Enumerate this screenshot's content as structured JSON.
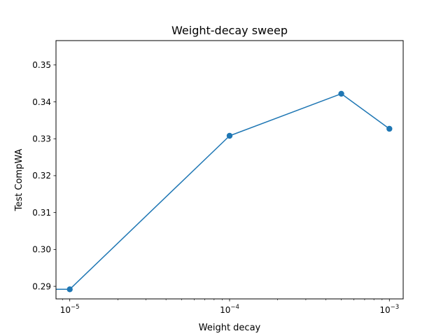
{
  "chart_data": {
    "type": "line",
    "title": "Weight-decay sweep",
    "xlabel": "Weight decay",
    "ylabel": "Test CompWA",
    "xscale": "log",
    "xlim": [
      8.2e-06,
      0.00122
    ],
    "ylim": [
      0.2866,
      0.3566
    ],
    "grid": false,
    "x": [
      1e-06,
      1e-05,
      0.0001,
      0.0005,
      0.001
    ],
    "series": [
      {
        "values": [
          0.2892,
          0.2892,
          0.3308,
          0.3422,
          0.3327
        ],
        "color": "#1f77b4",
        "marker": "circle",
        "marker_on": [
          false,
          true,
          true,
          true,
          true
        ]
      }
    ],
    "x_ticks": [
      {
        "value": 1e-05,
        "base": "10",
        "exp": "−5"
      },
      {
        "value": 0.0001,
        "base": "10",
        "exp": "−4"
      },
      {
        "value": 0.001,
        "base": "10",
        "exp": "−3"
      }
    ],
    "y_ticks": [
      {
        "value": 0.29,
        "label": "0.29"
      },
      {
        "value": 0.3,
        "label": "0.30"
      },
      {
        "value": 0.31,
        "label": "0.31"
      },
      {
        "value": 0.32,
        "label": "0.32"
      },
      {
        "value": 0.33,
        "label": "0.33"
      },
      {
        "value": 0.34,
        "label": "0.34"
      },
      {
        "value": 0.35,
        "label": "0.35"
      }
    ]
  }
}
